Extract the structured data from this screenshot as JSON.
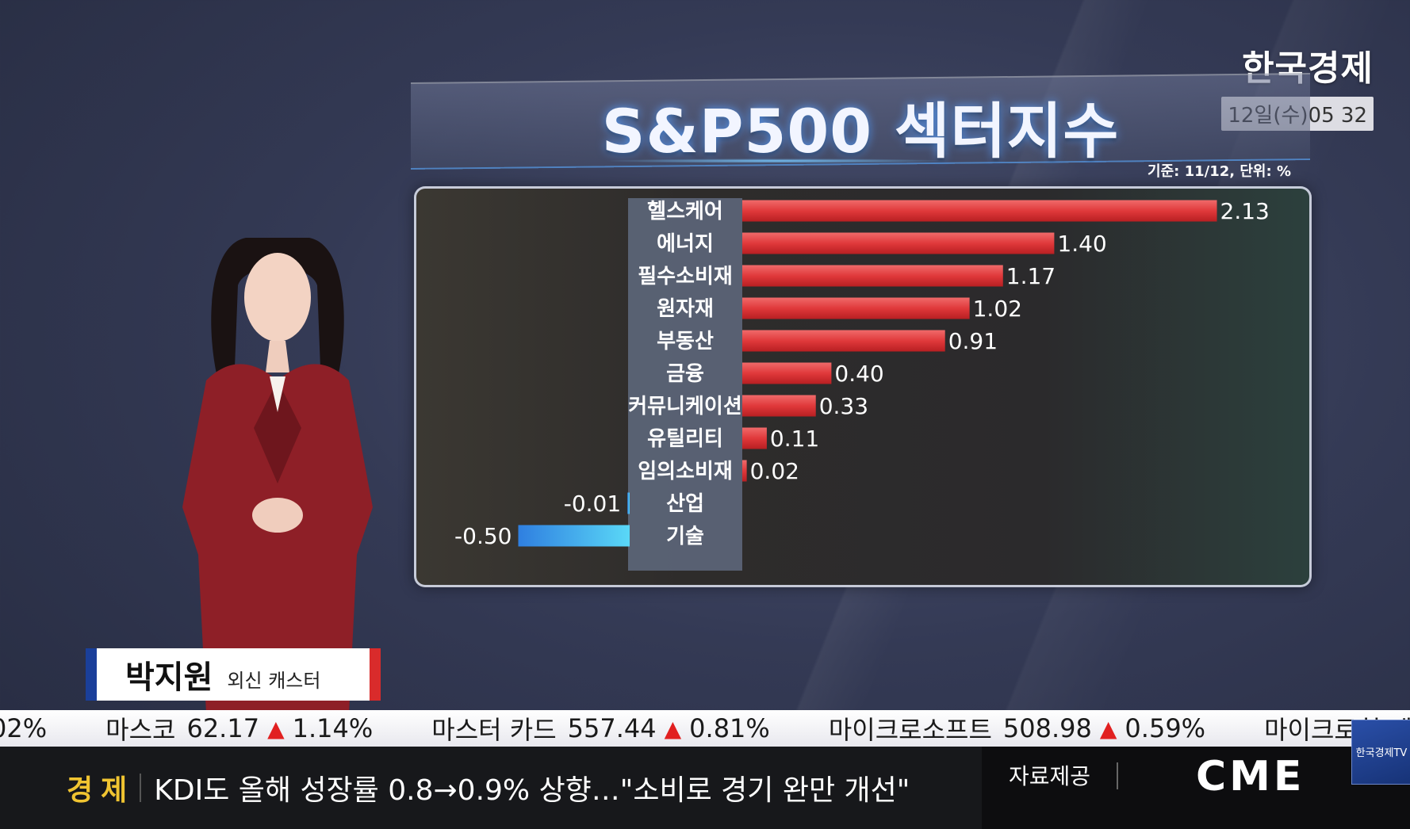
{
  "brand": {
    "logo": "한국경제",
    "clock": "12일(수)05 32"
  },
  "title": "S&P500 섹터지수",
  "basis_note": "기준: 11/12, 단위: %",
  "presenter": {
    "name": "박지원",
    "role": "외신 캐스터"
  },
  "ticker": [
    {
      "name": "",
      "price": "",
      "change": "02%"
    },
    {
      "name": "마스코",
      "price": "62.17",
      "change": "1.14%"
    },
    {
      "name": "마스터 카드",
      "price": "557.44",
      "change": "0.81%"
    },
    {
      "name": "마이크로소프트",
      "price": "508.98",
      "change": "0.59%"
    },
    {
      "name": "마이크로칩 테",
      "price": "",
      "change": ""
    }
  ],
  "news": {
    "category": "경제",
    "headline": "KDI도 올해 성장률 0.8→0.9% 상향…\"소비로 경기 완만 개선\""
  },
  "source": {
    "label": "자료제공",
    "value": "CME"
  },
  "channel_badge": "한국경제TV",
  "colors": {
    "positive_bar": "#e0393b",
    "negative_bar": "#3aa6f0",
    "accent_title_glow": "#5aa0ff"
  },
  "chart_data": {
    "type": "bar",
    "orientation": "horizontal",
    "title": "S&P500 섹터지수",
    "categories": [
      "헬스케어",
      "에너지",
      "필수소비재",
      "원자재",
      "부동산",
      "금융",
      "커뮤니케이션",
      "유틸리티",
      "임의소비재",
      "산업",
      "기술"
    ],
    "values": [
      2.13,
      1.4,
      1.17,
      1.02,
      0.91,
      0.4,
      0.33,
      0.11,
      0.02,
      -0.01,
      -0.5
    ],
    "value_labels": [
      "2.13",
      "1.40",
      "1.17",
      "1.02",
      "0.91",
      "0.40",
      "0.33",
      "0.11",
      "0.02",
      "-0.01",
      "-0.50"
    ],
    "unit": "%",
    "grid": false,
    "legend": "none"
  }
}
